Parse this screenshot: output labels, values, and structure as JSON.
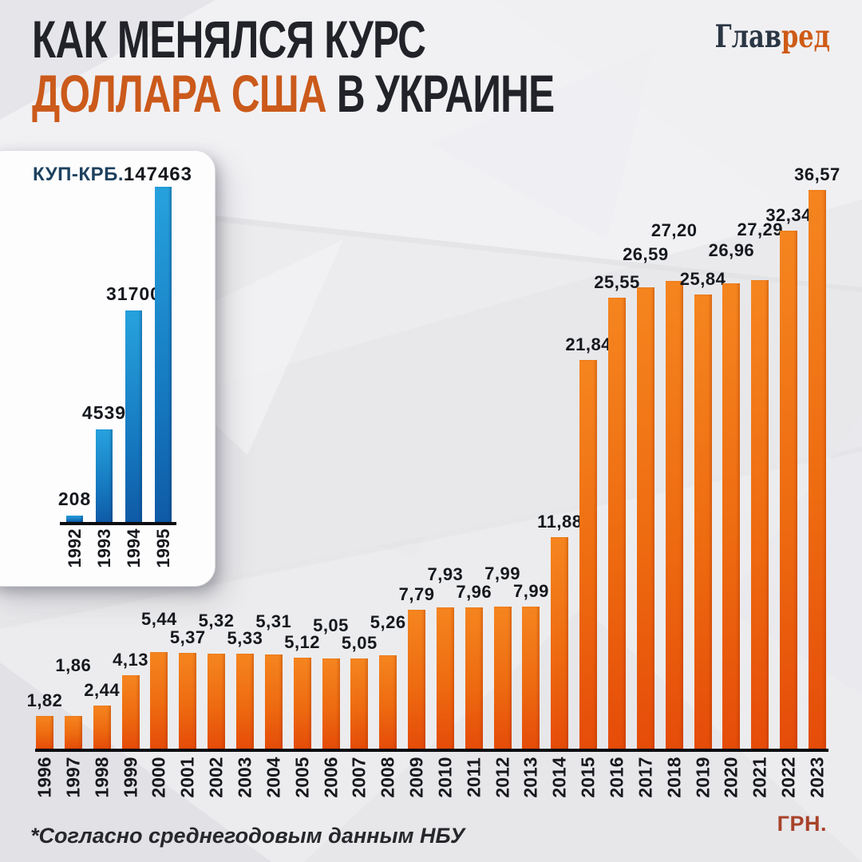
{
  "header": {
    "title_line1": "КАК МЕНЯЛСЯ КУРС",
    "title_line2_accent": "ДОЛЛАРА США",
    "title_line2_rest": " В УКРАИНЕ"
  },
  "logo": {
    "part1": "Глав",
    "part2": "ред"
  },
  "footnote": "*Согласно среднегодовым данным НБУ",
  "unit_label": "ГРН.",
  "colors": {
    "background": "#ECECEE",
    "title_dark": "#212329",
    "title_accent": "#CB5A1B",
    "logo_navy": "#2A3644",
    "logo_orange": "#CE5B16",
    "axis_black": "#0B0C10",
    "label_dark": "#15181D",
    "unit_red": "#A8422A",
    "inset_title_navy": "#1E415F",
    "bar_orange_top": "#F5851F",
    "bar_orange_mid": "#EE6B10",
    "bar_orange_bottom": "#E54C09",
    "bar_blue_top": "#27A2DE",
    "bar_blue_mid": "#1577BE",
    "bar_blue_bottom": "#0F5AA6"
  },
  "chart_data": [
    {
      "id": "inset-karbovanets",
      "type": "bar",
      "title": "КУП-КРБ.",
      "categories": [
        "1992",
        "1993",
        "1994",
        "1995"
      ],
      "values": [
        208,
        4539,
        31700,
        147463
      ],
      "value_labels": [
        "208",
        "4539",
        "31700",
        "147463"
      ],
      "ylabel": "КУП-КРБ.",
      "legend": "none",
      "grid": "off"
    },
    {
      "id": "main-hryvnia",
      "type": "bar",
      "title": "КАК МЕНЯЛСЯ КУРС ДОЛЛАРА США В УКРАИНЕ",
      "categories": [
        "1996",
        "1997",
        "1998",
        "1999",
        "2000",
        "2001",
        "2002",
        "2003",
        "2004",
        "2005",
        "2006",
        "2007",
        "2008",
        "2009",
        "2010",
        "2011",
        "2012",
        "2013",
        "2014",
        "2015",
        "2016",
        "2017",
        "2018",
        "2019",
        "2020",
        "2021",
        "2022",
        "2023"
      ],
      "values": [
        1.82,
        1.86,
        2.44,
        4.13,
        5.44,
        5.37,
        5.32,
        5.33,
        5.31,
        5.12,
        5.05,
        5.05,
        5.26,
        7.79,
        7.93,
        7.96,
        7.99,
        7.99,
        11.88,
        21.84,
        25.55,
        26.59,
        27.2,
        25.84,
        26.96,
        27.29,
        32.34,
        36.57
      ],
      "value_labels": [
        "1,82",
        "1,86",
        "2,44",
        "4,13",
        "5,44",
        "5,37",
        "5,32",
        "5,33",
        "5,31",
        "5,12",
        "5,05",
        "5,05",
        "5,26",
        "7,79",
        "7,93",
        "7,96",
        "7,99",
        "7,99",
        "11,88",
        "21,84",
        "25,55",
        "26,59",
        "27,20",
        "25,84",
        "26,96",
        "27,29",
        "32,34",
        "36,57"
      ],
      "unit": "ГРН.",
      "annotation": "*Согласно среднегодовым данным НБУ",
      "legend": "none",
      "grid": "off"
    }
  ]
}
